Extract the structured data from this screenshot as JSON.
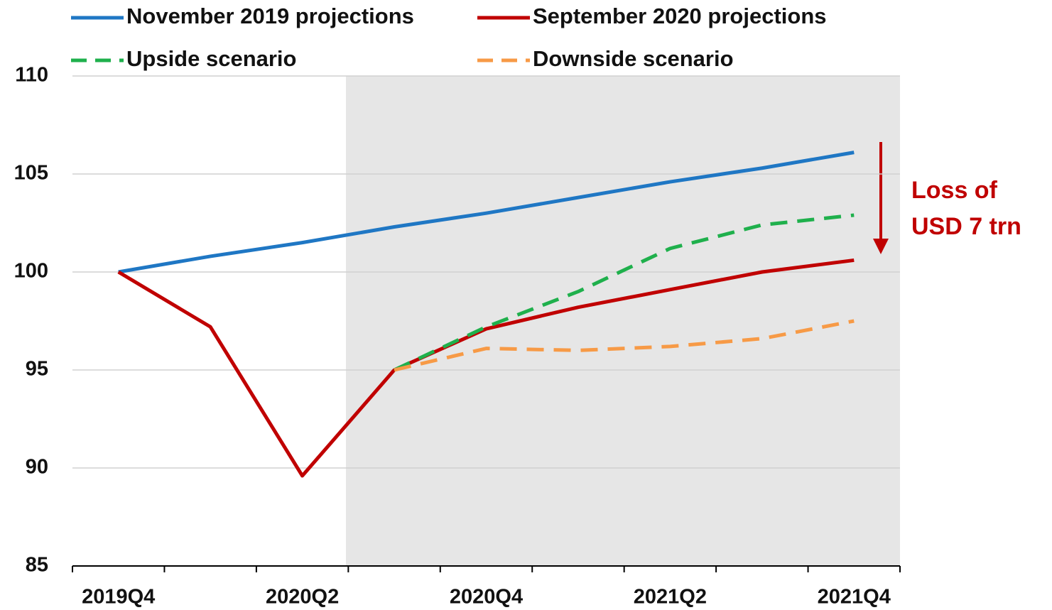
{
  "chart_data": {
    "type": "line",
    "categories": [
      "2019Q4",
      null,
      "2020Q2",
      null,
      "2020Q4",
      null,
      "2021Q2",
      null,
      "2021Q4"
    ],
    "series": [
      {
        "name": "November 2019 projections",
        "color": "#1f77c4",
        "line_style": "solid",
        "values": [
          100,
          100.8,
          101.5,
          102.3,
          103.0,
          103.8,
          104.6,
          105.3,
          106.1
        ]
      },
      {
        "name": "September 2020 projections",
        "color": "#c00000",
        "line_style": "solid",
        "values": [
          100,
          97.2,
          89.6,
          95.0,
          97.1,
          98.2,
          99.1,
          100.0,
          100.6
        ]
      },
      {
        "name": "Upside scenario",
        "color": "#1fb04c",
        "line_style": "dashed",
        "values": [
          null,
          null,
          null,
          95.0,
          97.2,
          99.0,
          101.2,
          102.4,
          102.9
        ]
      },
      {
        "name": "Downside scenario",
        "color": "#f79a46",
        "line_style": "dashed",
        "values": [
          null,
          null,
          null,
          95.0,
          96.1,
          96.0,
          96.2,
          96.6,
          97.5
        ]
      }
    ],
    "ylim": [
      85,
      110
    ],
    "yticks": [
      85,
      90,
      95,
      100,
      105,
      110
    ],
    "grid": true,
    "annotation": [
      "Loss of",
      "USD 7 trn"
    ]
  }
}
